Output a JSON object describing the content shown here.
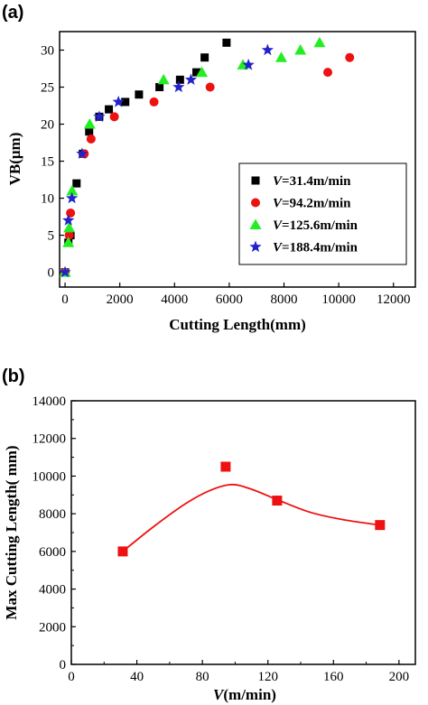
{
  "chart_data": [
    {
      "type": "scatter",
      "panel_label": "(a)",
      "xlabel": "Cutting Length(mm)",
      "ylabel": "VB(μm)",
      "xlim": [
        -200,
        12800
      ],
      "ylim": [
        -2,
        32.5
      ],
      "xticks": [
        0,
        2000,
        4000,
        6000,
        8000,
        10000,
        12000
      ],
      "yticks": [
        0,
        5,
        10,
        15,
        20,
        25,
        30
      ],
      "legend_position": "lower-right",
      "series": [
        {
          "name_prefix": "V",
          "name": "=31.4m/min",
          "marker": "square",
          "color": "#000000",
          "points": [
            [
              0,
              0
            ],
            [
              120,
              4
            ],
            [
              200,
              5
            ],
            [
              420,
              12
            ],
            [
              650,
              16
            ],
            [
              880,
              19
            ],
            [
              1250,
              21
            ],
            [
              1600,
              22
            ],
            [
              2200,
              23
            ],
            [
              2700,
              24
            ],
            [
              3450,
              25
            ],
            [
              4200,
              26
            ],
            [
              4800,
              27
            ],
            [
              5100,
              29
            ],
            [
              5900,
              31
            ]
          ]
        },
        {
          "name_prefix": "V",
          "name": "=94.2m/min",
          "marker": "circle",
          "color": "#ee1111",
          "points": [
            [
              0,
              0
            ],
            [
              150,
              5
            ],
            [
              200,
              8
            ],
            [
              700,
              16
            ],
            [
              950,
              18
            ],
            [
              1800,
              21
            ],
            [
              3250,
              23
            ],
            [
              5300,
              25
            ],
            [
              9600,
              27
            ],
            [
              10400,
              29
            ]
          ]
        },
        {
          "name_prefix": "V",
          "name": "=125.6m/min",
          "marker": "triangle",
          "color": "#22ee22",
          "points": [
            [
              0,
              0
            ],
            [
              120,
              4
            ],
            [
              150,
              6
            ],
            [
              260,
              11
            ],
            [
              900,
              20
            ],
            [
              3600,
              26
            ],
            [
              5000,
              27
            ],
            [
              6500,
              28
            ],
            [
              7900,
              29
            ],
            [
              8600,
              30
            ],
            [
              9300,
              31
            ]
          ]
        },
        {
          "name_prefix": "V",
          "name": "=188.4m/min",
          "marker": "star",
          "color": "#2222cc",
          "points": [
            [
              0,
              0
            ],
            [
              120,
              7
            ],
            [
              250,
              10
            ],
            [
              620,
              16
            ],
            [
              1250,
              21
            ],
            [
              1950,
              23
            ],
            [
              4150,
              25
            ],
            [
              4600,
              26
            ],
            [
              6700,
              28
            ],
            [
              7400,
              30
            ]
          ]
        }
      ]
    },
    {
      "type": "line",
      "panel_label": "(b)",
      "xlabel_prefix": "V",
      "xlabel": "(m/min)",
      "ylabel": "Max Cutting Length(  mm)",
      "xlim": [
        0,
        210
      ],
      "ylim": [
        0,
        14000
      ],
      "xticks": [
        0,
        40,
        80,
        120,
        160,
        200
      ],
      "yticks": [
        0,
        2000,
        4000,
        6000,
        8000,
        10000,
        12000,
        14000
      ],
      "series": [
        {
          "name": "",
          "marker": "square",
          "color": "#ee1111",
          "points": [
            [
              31.4,
              6000
            ],
            [
              94.2,
              10500
            ],
            [
              125.6,
              8700
            ],
            [
              188.4,
              7400
            ]
          ]
        },
        {
          "name": "",
          "kind": "fit",
          "color": "#ee1111",
          "points": [
            [
              31.4,
              6000
            ],
            [
              50,
              7300
            ],
            [
              70,
              8550
            ],
            [
              85,
              9250
            ],
            [
              98,
              9550
            ],
            [
              110,
              9300
            ],
            [
              125.6,
              8750
            ],
            [
              145,
              8100
            ],
            [
              165,
              7700
            ],
            [
              188.4,
              7400
            ]
          ]
        }
      ]
    }
  ]
}
